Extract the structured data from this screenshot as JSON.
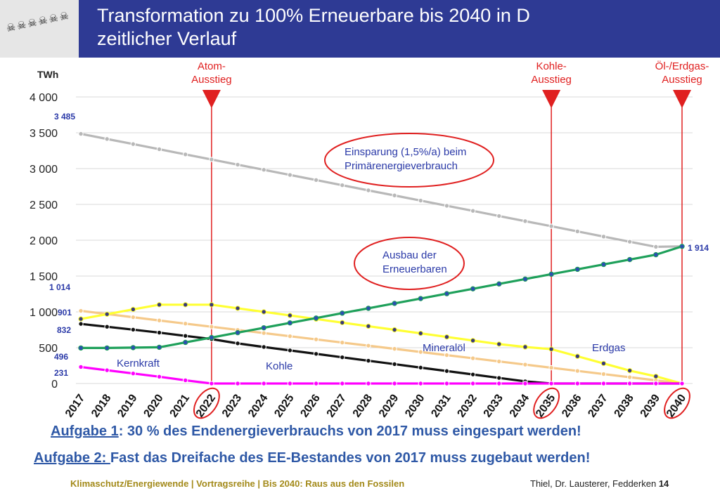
{
  "header": {
    "logo_text": "☠☠☠☠☠☠",
    "title_line1": "Transformation zu 100% Erneuerbare bis 2040 in D",
    "title_line2": "zeitlicher Verlauf",
    "bg_color": "#2e3a94"
  },
  "chart_data": {
    "type": "line",
    "ylabel": "TWh",
    "ylim": [
      0,
      4000
    ],
    "yticks": [
      0,
      500,
      1000,
      1500,
      2000,
      2500,
      3000,
      3500,
      4000
    ],
    "ytick_labels": [
      "0",
      "500",
      "1 000",
      "1 500",
      "2 000",
      "2 500",
      "3 000",
      "3 500",
      "4 000"
    ],
    "x": [
      2017,
      2018,
      2019,
      2020,
      2021,
      2022,
      2023,
      2024,
      2025,
      2026,
      2027,
      2028,
      2029,
      2030,
      2031,
      2032,
      2033,
      2034,
      2035,
      2036,
      2037,
      2038,
      2039,
      2040
    ],
    "x_labels": [
      "2017",
      "2018",
      "2019",
      "2020",
      "2021",
      "2022",
      "2023",
      "2024",
      "2025",
      "2026",
      "2027",
      "2028",
      "2029",
      "2030",
      "2031",
      "2032",
      "2033",
      "2034",
      "2035",
      "2036",
      "2037",
      "2038",
      "2039",
      "2040"
    ],
    "series": [
      {
        "name": "Primärenergieverbrauch",
        "color": "#b8b8b8",
        "marker": "#b8b8b8",
        "values": [
          3485,
          3413,
          3342,
          3270,
          3198,
          3127,
          3055,
          2983,
          2911,
          2840,
          2768,
          2696,
          2625,
          2553,
          2481,
          2410,
          2338,
          2266,
          2195,
          2123,
          2051,
          1979,
          1908,
          1914
        ]
      },
      {
        "name": "Erneuerbare",
        "color": "#1ea05a",
        "marker": "#2b4fb0",
        "values": [
          496,
          496,
          501,
          506,
          574,
          642,
          710,
          778,
          846,
          914,
          982,
          1050,
          1118,
          1186,
          1254,
          1322,
          1390,
          1458,
          1526,
          1594,
          1662,
          1730,
          1798,
          1914
        ]
      },
      {
        "name": "Mineralöl",
        "color": "#ffff33",
        "marker": "#3a3a7a",
        "values": [
          901,
          968,
          1035,
          1100,
          1100,
          1100,
          1050,
          1000,
          950,
          900,
          850,
          800,
          750,
          700,
          650,
          600,
          550,
          510,
          480,
          380,
          280,
          180,
          100,
          0
        ]
      },
      {
        "name": "Erdgas",
        "color": "#f5c98a",
        "marker": "#f5c98a",
        "values": [
          1014,
          970,
          925,
          880,
          836,
          792,
          748,
          704,
          660,
          616,
          572,
          528,
          484,
          440,
          396,
          352,
          308,
          264,
          220,
          176,
          132,
          88,
          44,
          0
        ]
      },
      {
        "name": "Kohle",
        "color": "#111111",
        "marker": "#111111",
        "values": [
          832,
          792,
          752,
          710,
          665,
          620,
          560,
          510,
          462,
          414,
          366,
          318,
          270,
          222,
          174,
          126,
          78,
          30,
          0,
          0,
          0,
          0,
          0,
          0
        ]
      },
      {
        "name": "Kernkraft",
        "color": "#ff00ff",
        "marker": "#ff00ff",
        "values": [
          231,
          185,
          140,
          95,
          45,
          0,
          0,
          0,
          0,
          0,
          0,
          0,
          0,
          0,
          0,
          0,
          0,
          0,
          0,
          0,
          0,
          0,
          0,
          0
        ]
      }
    ],
    "value_labels": [
      {
        "text": "3 485",
        "x": 2017,
        "y": 3485
      },
      {
        "text": "1 914",
        "x": 2040,
        "y": 1914
      },
      {
        "text": "1 014",
        "x": 2017,
        "y": 1014
      },
      {
        "text": "901",
        "x": 2017,
        "y": 901
      },
      {
        "text": "832",
        "x": 2017,
        "y": 832
      },
      {
        "text": "496",
        "x": 2017,
        "y": 496
      },
      {
        "text": "231",
        "x": 2017,
        "y": 231
      }
    ],
    "series_labels": [
      {
        "text": "Kernkraft",
        "x": 2019.5,
        "y": 260
      },
      {
        "text": "Kohle",
        "x": 2024.7,
        "y": 250
      },
      {
        "text": "Mineralöl",
        "x": 2031.2,
        "y": 520
      },
      {
        "text": "Erdgas",
        "x": 2036.8,
        "y": 520
      }
    ],
    "milestones": [
      {
        "line1": "Atom-",
        "line2": "Ausstieg",
        "x": 2022
      },
      {
        "line1": "Kohle-",
        "line2": "Ausstieg",
        "x": 2035
      },
      {
        "line1": "Öl-/Erdgas-",
        "line2": "Ausstieg",
        "x": 2040
      }
    ],
    "annotations": [
      {
        "line1": "Einsparung (1,5%/a) beim",
        "line2": "Primärenergieverbrauch"
      },
      {
        "line1": "Ausbau der",
        "line2": "Erneuerbaren"
      }
    ],
    "circled_years": [
      "2022",
      "2035",
      "2040"
    ],
    "accent_color": "#e02020",
    "label_color": "#2b3aa8"
  },
  "tasks": {
    "task1_prefix": "Aufgabe 1",
    "task1_text": ": 30 % des Endenergieverbrauchs von 2017 muss eingespart werden!",
    "task2_prefix": "Aufgabe 2: ",
    "task2_text": "Fast das Dreifache des EE-Bestandes von 2017 muss zugebaut werden!"
  },
  "footer": {
    "left": "Klimaschutz/Energiewende | Vortragsreihe | Bis 2040: Raus aus den Fossilen",
    "right_authors": "Thiel, Dr. Lausterer, Fedderken",
    "page_number": "14"
  }
}
